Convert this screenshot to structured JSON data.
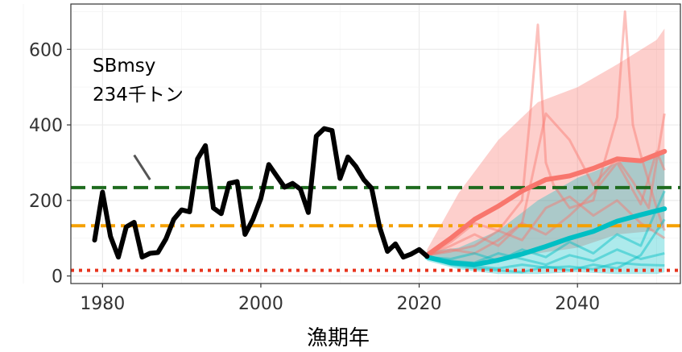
{
  "chart_data": {
    "type": "line",
    "xlabel": "漁期年",
    "ylabel": "",
    "xlim": [
      1976,
      2053
    ],
    "ylim": [
      -20,
      720
    ],
    "x_ticks": [
      1980,
      2000,
      2020,
      2040
    ],
    "y_ticks": [
      0,
      200,
      400,
      600
    ],
    "grid": true,
    "annotation": {
      "line1": "SBmsy",
      "line2": "234千トン",
      "pointer_from": [
        1984,
        320
      ],
      "pointer_to": [
        1986,
        255
      ]
    },
    "reference_lines": [
      {
        "value": 234,
        "color": "#1e6b1e",
        "style": "dashed"
      },
      {
        "value": 133,
        "color": "#f5a000",
        "style": "dashdot"
      },
      {
        "value": 15,
        "color": "#e8341e",
        "style": "dotted"
      }
    ],
    "historical": {
      "color": "#000000",
      "x": [
        1979,
        1980,
        1981,
        1982,
        1983,
        1984,
        1985,
        1986,
        1987,
        1988,
        1989,
        1990,
        1991,
        1992,
        1993,
        1994,
        1995,
        1996,
        1997,
        1998,
        1999,
        2000,
        2001,
        2002,
        2003,
        2004,
        2005,
        2006,
        2007,
        2008,
        2009,
        2010,
        2011,
        2012,
        2013,
        2014,
        2015,
        2016,
        2017,
        2018,
        2019,
        2020,
        2021
      ],
      "y": [
        95,
        222,
        105,
        50,
        130,
        142,
        50,
        60,
        62,
        98,
        150,
        175,
        170,
        310,
        345,
        180,
        165,
        245,
        250,
        110,
        150,
        205,
        295,
        265,
        235,
        245,
        230,
        168,
        370,
        390,
        385,
        258,
        315,
        290,
        255,
        232,
        130,
        65,
        85,
        50,
        58,
        70,
        52
      ]
    },
    "projections": [
      {
        "color": "#f8766d",
        "band_x": [
          2021,
          2025,
          2030,
          2035,
          2040,
          2045,
          2050,
          2051
        ],
        "band_lower": [
          45,
          30,
          45,
          60,
          75,
          110,
          120,
          130
        ],
        "band_upper": [
          70,
          220,
          360,
          460,
          500,
          560,
          625,
          655
        ],
        "median_x": [
          2021,
          2024,
          2027,
          2030,
          2033,
          2036,
          2039,
          2042,
          2045,
          2048,
          2051
        ],
        "median": [
          55,
          100,
          150,
          185,
          225,
          255,
          265,
          285,
          310,
          305,
          330
        ],
        "sample_paths": [
          {
            "x": [
              2021,
              2024,
              2027,
              2030,
              2033,
              2034,
              2035,
              2036,
              2037,
              2039,
              2042,
              2045,
              2046,
              2047,
              2048,
              2050,
              2051
            ],
            "y": [
              55,
              90,
              140,
              120,
              200,
              420,
              665,
              300,
              240,
              180,
              200,
              420,
              700,
              400,
              320,
              180,
              120
            ]
          },
          {
            "x": [
              2021,
              2024,
              2027,
              2030,
              2033,
              2036,
              2039,
              2042,
              2045,
              2047,
              2049,
              2051
            ],
            "y": [
              55,
              80,
              110,
              80,
              140,
              430,
              360,
              240,
              310,
              250,
              180,
              430
            ]
          },
          {
            "x": [
              2021,
              2024,
              2027,
              2030,
              2033,
              2036,
              2039,
              2042,
              2045,
              2048,
              2051
            ],
            "y": [
              55,
              65,
              80,
              120,
              95,
              180,
              210,
              160,
              200,
              140,
              100
            ]
          },
          {
            "x": [
              2021,
              2024,
              2027,
              2030,
              2033,
              2036,
              2039,
              2042,
              2045,
              2048,
              2050,
              2051
            ],
            "y": [
              55,
              70,
              60,
              95,
              140,
              110,
              160,
              220,
              300,
              190,
              330,
              280
            ]
          }
        ]
      },
      {
        "color": "#00bfc4",
        "band_x": [
          2021,
          2025,
          2030,
          2035,
          2040,
          2045,
          2050,
          2051
        ],
        "band_lower": [
          40,
          18,
          5,
          5,
          10,
          5,
          5,
          10
        ],
        "band_upper": [
          65,
          75,
          120,
          200,
          260,
          300,
          320,
          330
        ],
        "median_x": [
          2021,
          2024,
          2027,
          2030,
          2033,
          2036,
          2039,
          2042,
          2045,
          2048,
          2051
        ],
        "median": [
          50,
          35,
          30,
          42,
          58,
          78,
          100,
          118,
          145,
          162,
          178
        ],
        "sample_paths": [
          {
            "x": [
              2021,
              2024,
              2027,
              2030,
              2033,
              2036,
              2039,
              2042,
              2045,
              2048,
              2051
            ],
            "y": [
              50,
              35,
              25,
              20,
              30,
              22,
              25,
              18,
              35,
              30,
              28
            ]
          },
          {
            "x": [
              2021,
              2024,
              2027,
              2030,
              2033,
              2036,
              2039,
              2042,
              2045,
              2048,
              2051
            ],
            "y": [
              50,
              45,
              60,
              40,
              70,
              50,
              90,
              60,
              110,
              80,
              225
            ]
          },
          {
            "x": [
              2021,
              2024,
              2027,
              2030,
              2033,
              2036,
              2039,
              2042,
              2045,
              2048,
              2051
            ],
            "y": [
              50,
              30,
              20,
              15,
              10,
              25,
              15,
              30,
              20,
              55,
              150
            ]
          },
          {
            "x": [
              2021,
              2024,
              2027,
              2030,
              2033,
              2036,
              2039,
              2042,
              2045,
              2048,
              2051
            ],
            "y": [
              50,
              40,
              35,
              60,
              45,
              30,
              55,
              40,
              70,
              45,
              60
            ]
          }
        ]
      }
    ]
  }
}
